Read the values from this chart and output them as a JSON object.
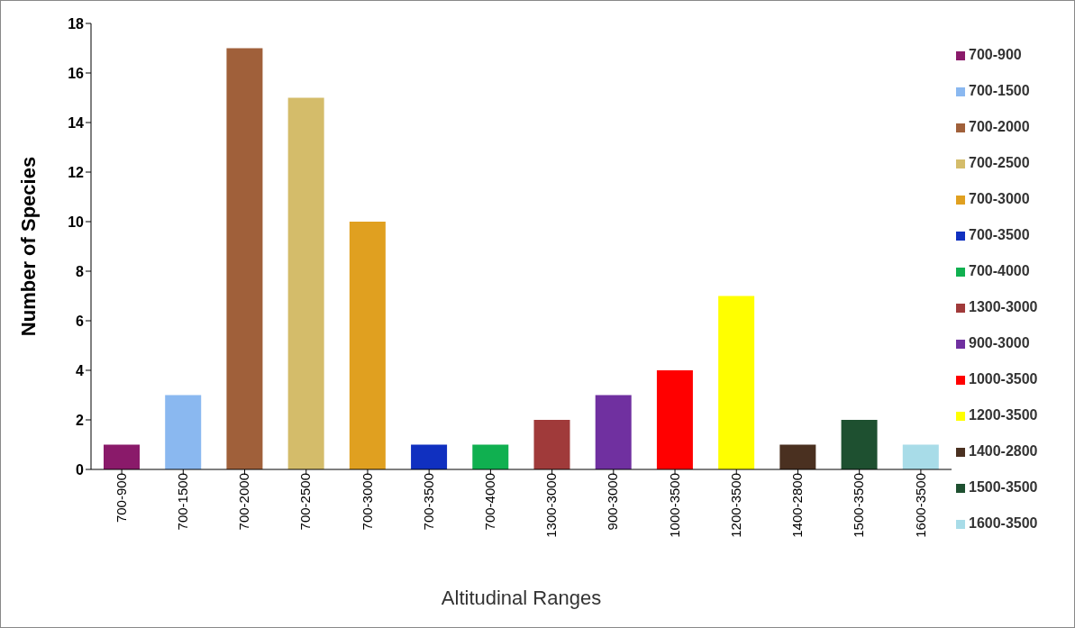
{
  "chart_data": {
    "type": "bar",
    "xlabel": "Altitudinal Ranges",
    "ylabel": "Number of Species",
    "stacked": true,
    "categories": [
      "700-900",
      "700-1500",
      "700-2000",
      "700-2500",
      "700-3000",
      "700-3500",
      "700-4000",
      "1300-3000",
      "900-3000",
      "1000-3500",
      "1200-3500",
      "1400-2800",
      "1500-3500",
      "1600-3500"
    ],
    "series": [
      {
        "name": "700-900",
        "color": "#8a1a6a",
        "values": [
          1,
          null,
          null,
          null,
          null,
          null,
          null,
          null,
          null,
          null,
          null,
          null,
          null,
          null
        ]
      },
      {
        "name": "700-1500",
        "color": "#8ab8f0",
        "values": [
          null,
          3,
          null,
          null,
          null,
          null,
          null,
          null,
          null,
          null,
          null,
          null,
          null,
          null
        ]
      },
      {
        "name": "700-2000",
        "color": "#a0603a",
        "values": [
          null,
          null,
          17,
          null,
          null,
          null,
          null,
          null,
          null,
          null,
          null,
          null,
          null,
          null
        ]
      },
      {
        "name": "700-2500",
        "color": "#d4bc6a",
        "values": [
          null,
          null,
          null,
          15,
          null,
          null,
          null,
          null,
          null,
          null,
          null,
          null,
          null,
          null
        ]
      },
      {
        "name": "700-3000",
        "color": "#e0a020",
        "values": [
          null,
          null,
          null,
          null,
          10,
          null,
          null,
          null,
          null,
          null,
          null,
          null,
          null,
          null
        ]
      },
      {
        "name": "700-3500",
        "color": "#1030c0",
        "values": [
          null,
          null,
          null,
          null,
          null,
          1,
          null,
          null,
          null,
          null,
          null,
          null,
          null,
          null
        ]
      },
      {
        "name": "700-4000",
        "color": "#10b050",
        "values": [
          null,
          null,
          null,
          null,
          null,
          null,
          1,
          null,
          null,
          null,
          null,
          null,
          null,
          null
        ]
      },
      {
        "name": "1300-3000",
        "color": "#a03a3a",
        "values": [
          null,
          null,
          null,
          null,
          null,
          null,
          null,
          2,
          null,
          null,
          null,
          null,
          null,
          null
        ]
      },
      {
        "name": "900-3000",
        "color": "#7030a0",
        "values": [
          null,
          null,
          null,
          null,
          null,
          null,
          null,
          null,
          3,
          null,
          null,
          null,
          null,
          null
        ]
      },
      {
        "name": "1000-3500",
        "color": "#ff0000",
        "values": [
          null,
          null,
          null,
          null,
          null,
          null,
          null,
          null,
          null,
          4,
          null,
          null,
          null,
          null
        ]
      },
      {
        "name": "1200-3500",
        "color": "#ffff00",
        "values": [
          null,
          null,
          null,
          null,
          null,
          null,
          null,
          null,
          null,
          null,
          7,
          null,
          null,
          null
        ]
      },
      {
        "name": "1400-2800",
        "color": "#4a3020",
        "values": [
          null,
          null,
          null,
          null,
          null,
          null,
          null,
          null,
          null,
          null,
          null,
          1,
          null,
          null
        ]
      },
      {
        "name": "1500-3500",
        "color": "#1e5030",
        "values": [
          null,
          null,
          null,
          null,
          null,
          null,
          null,
          null,
          null,
          null,
          null,
          null,
          2,
          null
        ]
      },
      {
        "name": "1600-3500",
        "color": "#a8dce8",
        "values": [
          null,
          null,
          null,
          null,
          null,
          null,
          null,
          null,
          null,
          null,
          null,
          null,
          null,
          1
        ]
      }
    ],
    "ylim": [
      0,
      18
    ],
    "yticks": [
      0,
      2,
      4,
      6,
      8,
      10,
      12,
      14,
      16,
      18
    ],
    "grid": false,
    "legend": "right"
  }
}
